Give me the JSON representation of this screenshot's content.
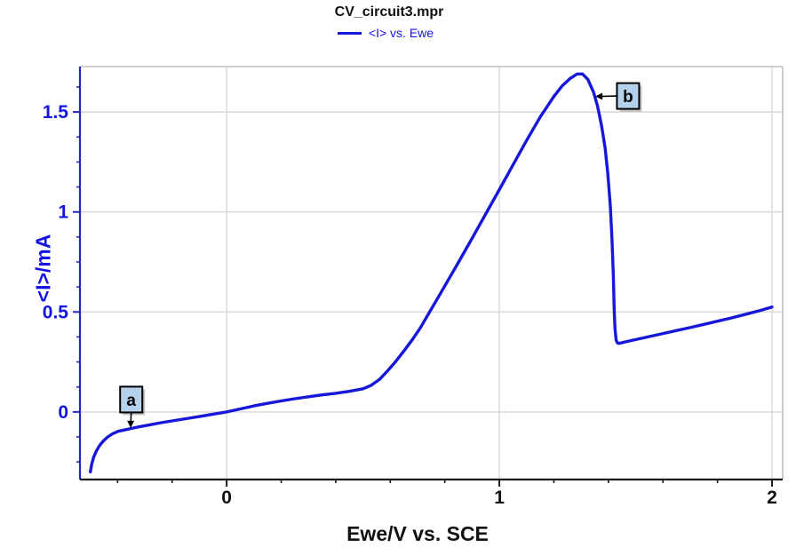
{
  "header": {
    "title": "CV_circuit3.mpr",
    "legend_label": "<I> vs. Ewe"
  },
  "chart_data": {
    "type": "line",
    "title": "CV_circuit3.mpr",
    "xlabel": "Ewe/V vs. SCE",
    "ylabel": "<I>/mA",
    "xlim": [
      -0.538,
      2.039
    ],
    "ylim": [
      -0.338,
      1.727
    ],
    "grid": true,
    "legend_position": "top-center",
    "xticks": [
      {
        "v": 0,
        "label": "0"
      },
      {
        "v": 1,
        "label": "1"
      },
      {
        "v": 2,
        "label": "2"
      }
    ],
    "yticks": [
      {
        "v": 0,
        "label": "0"
      },
      {
        "v": 0.5,
        "label": "0.5"
      },
      {
        "v": 1,
        "label": "1"
      },
      {
        "v": 1.5,
        "label": "1.5"
      }
    ],
    "x_minor_step": 0.2,
    "y_minor_step": 0.125,
    "series": [
      {
        "name": "<I> vs. Ewe",
        "color": "#1717d9",
        "points": [
          [
            -0.5,
            -0.3
          ],
          [
            -0.495,
            -0.262
          ],
          [
            -0.488,
            -0.228
          ],
          [
            -0.478,
            -0.196
          ],
          [
            -0.466,
            -0.168
          ],
          [
            -0.452,
            -0.145
          ],
          [
            -0.436,
            -0.125
          ],
          [
            -0.418,
            -0.109
          ],
          [
            -0.398,
            -0.097
          ],
          [
            -0.375,
            -0.09
          ],
          [
            -0.352,
            -0.083
          ],
          [
            -0.32,
            -0.074
          ],
          [
            -0.28,
            -0.064
          ],
          [
            -0.24,
            -0.054
          ],
          [
            -0.2,
            -0.045
          ],
          [
            -0.15,
            -0.034
          ],
          [
            -0.1,
            -0.023
          ],
          [
            -0.05,
            -0.011
          ],
          [
            0.0,
            0.0
          ],
          [
            0.05,
            0.015
          ],
          [
            0.1,
            0.03
          ],
          [
            0.15,
            0.043
          ],
          [
            0.2,
            0.055
          ],
          [
            0.25,
            0.066
          ],
          [
            0.3,
            0.076
          ],
          [
            0.35,
            0.085
          ],
          [
            0.4,
            0.093
          ],
          [
            0.45,
            0.103
          ],
          [
            0.5,
            0.116
          ],
          [
            0.53,
            0.133
          ],
          [
            0.56,
            0.162
          ],
          [
            0.59,
            0.205
          ],
          [
            0.62,
            0.252
          ],
          [
            0.65,
            0.305
          ],
          [
            0.68,
            0.36
          ],
          [
            0.71,
            0.42
          ],
          [
            0.74,
            0.49
          ],
          [
            0.77,
            0.56
          ],
          [
            0.8,
            0.63
          ],
          [
            0.85,
            0.748
          ],
          [
            0.9,
            0.868
          ],
          [
            0.95,
            0.99
          ],
          [
            1.0,
            1.112
          ],
          [
            1.05,
            1.235
          ],
          [
            1.1,
            1.358
          ],
          [
            1.15,
            1.475
          ],
          [
            1.2,
            1.578
          ],
          [
            1.23,
            1.63
          ],
          [
            1.26,
            1.668
          ],
          [
            1.285,
            1.69
          ],
          [
            1.305,
            1.69
          ],
          [
            1.325,
            1.662
          ],
          [
            1.345,
            1.6
          ],
          [
            1.36,
            1.53
          ],
          [
            1.375,
            1.43
          ],
          [
            1.388,
            1.318
          ],
          [
            1.398,
            1.19
          ],
          [
            1.407,
            1.03
          ],
          [
            1.413,
            0.86
          ],
          [
            1.418,
            0.68
          ],
          [
            1.421,
            0.52
          ],
          [
            1.424,
            0.42
          ],
          [
            1.428,
            0.36
          ],
          [
            1.433,
            0.345
          ],
          [
            1.44,
            0.343
          ],
          [
            1.46,
            0.35
          ],
          [
            1.5,
            0.362
          ],
          [
            1.55,
            0.377
          ],
          [
            1.6,
            0.392
          ],
          [
            1.65,
            0.407
          ],
          [
            1.7,
            0.422
          ],
          [
            1.75,
            0.438
          ],
          [
            1.8,
            0.454
          ],
          [
            1.85,
            0.47
          ],
          [
            1.9,
            0.487
          ],
          [
            1.95,
            0.505
          ],
          [
            2.0,
            0.525
          ]
        ]
      }
    ],
    "annotations": [
      {
        "label": "a",
        "target": [
          -0.352,
          -0.08
        ],
        "box_center": [
          -0.35,
          0.062
        ],
        "direction": "down"
      },
      {
        "label": "b",
        "target": [
          1.352,
          1.578
        ],
        "box_center": [
          1.472,
          1.58
        ],
        "direction": "left"
      }
    ],
    "colors": {
      "series": "#1717d9",
      "axis_y": "#2424cc",
      "axis_x": "#1a1a1a",
      "grid": "#d8d8d8",
      "frame": "#c0c0c0",
      "tick_label_x": "#111111",
      "tick_label_y": "#1414e0",
      "annotation_fill": "#b5d2ed",
      "annotation_border": "#000000",
      "annotation_shadow": "#9a9a9a"
    }
  }
}
